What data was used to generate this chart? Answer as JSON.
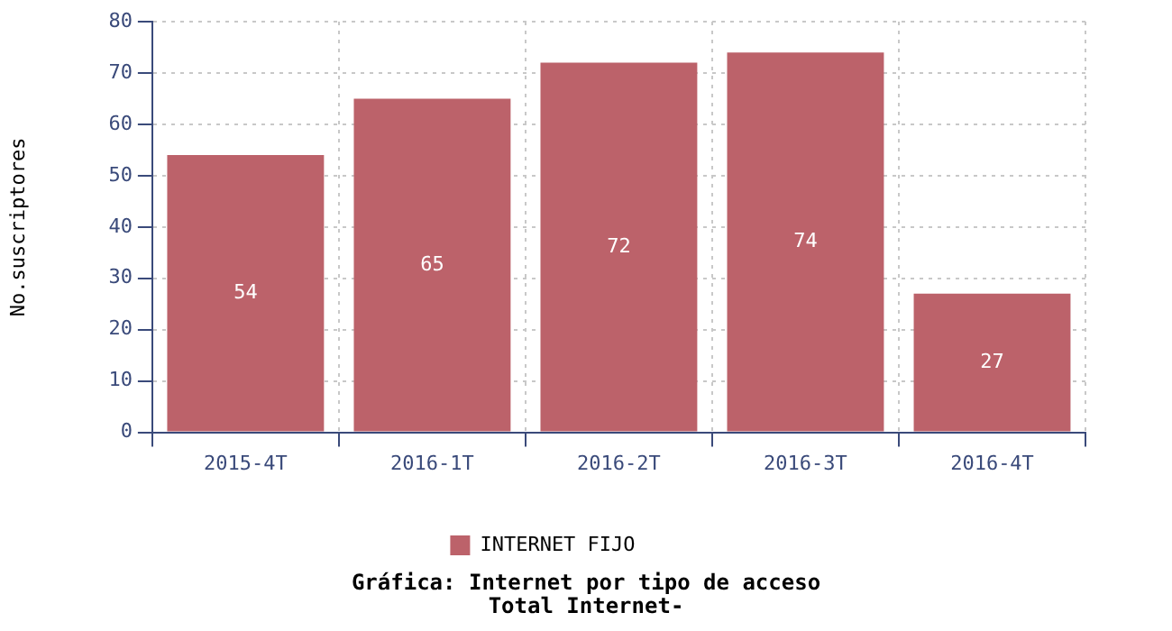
{
  "chart_data": {
    "type": "bar",
    "title": "Gráfica: Internet por tipo de acceso",
    "subtitle": "Total Internet-",
    "ylabel": "No.suscriptores",
    "categories": [
      "2015-4T",
      "2016-1T",
      "2016-2T",
      "2016-3T",
      "2016-4T"
    ],
    "series": [
      {
        "name": "INTERNET FIJO",
        "color": "#bc626a",
        "values": [
          54,
          65,
          72,
          74,
          27
        ]
      }
    ],
    "ylim": [
      0,
      80
    ],
    "yticks": [
      0,
      10,
      20,
      30,
      40,
      50,
      60,
      70,
      80
    ],
    "grid": true,
    "legend": "bottom",
    "data_labels": true
  }
}
